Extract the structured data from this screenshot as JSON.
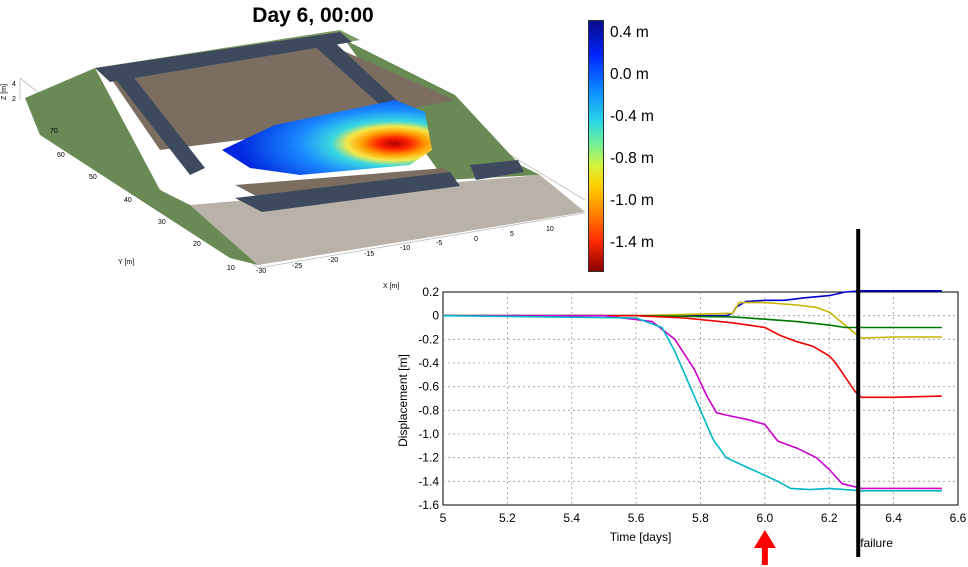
{
  "title": "Day 6, 00:00",
  "terrain_plot": {
    "z_label": "Z [m]",
    "z_ticks": [
      "4",
      "2"
    ],
    "y_label": "Y [m]",
    "y_ticks": [
      "70",
      "60",
      "50",
      "40",
      "30",
      "20",
      "10"
    ],
    "x_label": "X [m]",
    "x_ticks": [
      "-30",
      "-25",
      "-20",
      "-15",
      "-10",
      "-5",
      "0",
      "5",
      "10"
    ]
  },
  "colorbar": {
    "labels": [
      "0.4 m",
      "0.0 m",
      "-0.4 m",
      "-0.8 m",
      "-1.0 m",
      "-1.4 m"
    ]
  },
  "annotation": {
    "failure_label": "failure",
    "arrow_color": "#ff0000",
    "failure_line_color": "#000000"
  },
  "chart_data": {
    "type": "line",
    "xlabel": "Time [days]",
    "ylabel": "Displacement [m]",
    "xlim": [
      5.0,
      6.6
    ],
    "ylim": [
      -1.6,
      0.2
    ],
    "x_ticks": [
      "5",
      "5.2",
      "5.4",
      "5.6",
      "5.8",
      "6.0",
      "6.2",
      "6.4",
      "6.6"
    ],
    "y_ticks": [
      "0.2",
      "0",
      "-0.2",
      "-0.4",
      "-0.6",
      "-0.8",
      "-1.0",
      "-1.2",
      "-1.4",
      "-1.6"
    ],
    "grid": true,
    "failure_time": 6.29,
    "marker_time": 6.0,
    "series": [
      {
        "color": "#0000cc",
        "x": [
          5.0,
          5.6,
          5.88,
          5.9,
          5.91,
          5.94,
          6.0,
          6.06,
          6.12,
          6.2,
          6.25,
          6.3,
          6.4,
          6.55
        ],
        "y": [
          0.0,
          0.0,
          0.0,
          0.02,
          0.07,
          0.12,
          0.13,
          0.13,
          0.15,
          0.17,
          0.2,
          0.21,
          0.21,
          0.21
        ]
      },
      {
        "color": "#c8b400",
        "x": [
          5.0,
          5.6,
          5.9,
          5.92,
          6.0,
          6.1,
          6.16,
          6.2,
          6.24,
          6.28,
          6.3,
          6.4,
          6.55
        ],
        "y": [
          0.0,
          0.0,
          0.02,
          0.11,
          0.11,
          0.09,
          0.07,
          0.03,
          -0.06,
          -0.15,
          -0.19,
          -0.18,
          -0.18
        ]
      },
      {
        "color": "#007700",
        "x": [
          5.0,
          5.6,
          5.9,
          6.0,
          6.1,
          6.2,
          6.25,
          6.3,
          6.4,
          6.55
        ],
        "y": [
          0.0,
          0.0,
          -0.01,
          -0.03,
          -0.05,
          -0.08,
          -0.1,
          -0.1,
          -0.1,
          -0.1
        ]
      },
      {
        "color": "#ee0000",
        "x": [
          5.0,
          5.6,
          5.75,
          5.9,
          6.0,
          6.05,
          6.1,
          6.15,
          6.2,
          6.22,
          6.25,
          6.28,
          6.3,
          6.4,
          6.55
        ],
        "y": [
          0.0,
          0.0,
          -0.02,
          -0.06,
          -0.1,
          -0.17,
          -0.22,
          -0.26,
          -0.34,
          -0.4,
          -0.52,
          -0.64,
          -0.69,
          -0.69,
          -0.68
        ]
      },
      {
        "color": "#cc00cc",
        "x": [
          5.0,
          5.5,
          5.65,
          5.72,
          5.78,
          5.82,
          5.85,
          5.88,
          5.95,
          6.0,
          6.04,
          6.1,
          6.16,
          6.2,
          6.24,
          6.3,
          6.55
        ],
        "y": [
          0.0,
          0.0,
          -0.05,
          -0.2,
          -0.45,
          -0.68,
          -0.82,
          -0.84,
          -0.88,
          -0.92,
          -1.06,
          -1.12,
          -1.2,
          -1.3,
          -1.42,
          -1.46,
          -1.46
        ]
      },
      {
        "color": "#00b8c8",
        "x": [
          5.0,
          5.6,
          5.68,
          5.72,
          5.76,
          5.8,
          5.84,
          5.88,
          5.92,
          5.96,
          6.0,
          6.04,
          6.08,
          6.14,
          6.2,
          6.3,
          6.55
        ],
        "y": [
          0.0,
          -0.02,
          -0.1,
          -0.3,
          -0.55,
          -0.8,
          -1.05,
          -1.2,
          -1.25,
          -1.3,
          -1.35,
          -1.4,
          -1.46,
          -1.47,
          -1.46,
          -1.48,
          -1.48
        ]
      }
    ]
  }
}
